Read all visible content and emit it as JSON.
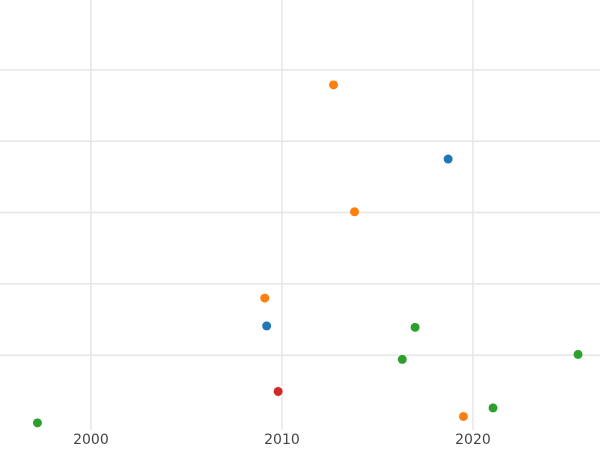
{
  "chart_data": {
    "type": "scatter",
    "series": [
      {
        "color": "#1f77b4",
        "x": [
          2018.7,
          2009.2
        ],
        "values": [
          3.75,
          1.41
        ]
      },
      {
        "color": "#ff7f0e",
        "x": [
          2012.7,
          2013.8,
          2009.1,
          2019.5
        ],
        "values": [
          4.79,
          3.01,
          1.8,
          0.14
        ]
      },
      {
        "color": "#2ca02c",
        "x": [
          1997.2,
          2016.97,
          2016.3,
          2025.5,
          2021.05
        ],
        "values": [
          0.05,
          1.39,
          0.94,
          1.01,
          0.26
        ]
      },
      {
        "color": "#d62728",
        "x": [
          2009.8
        ],
        "values": [
          0.49
        ]
      }
    ],
    "xlim": [
      1995.24,
      2026.65
    ],
    "xticks": [
      2000,
      2010,
      2020
    ],
    "ylim": [
      -0.05,
      5.98
    ],
    "yticks": [
      1,
      2,
      3,
      4,
      5
    ],
    "show_ytick_labels": false,
    "grid": true
  }
}
